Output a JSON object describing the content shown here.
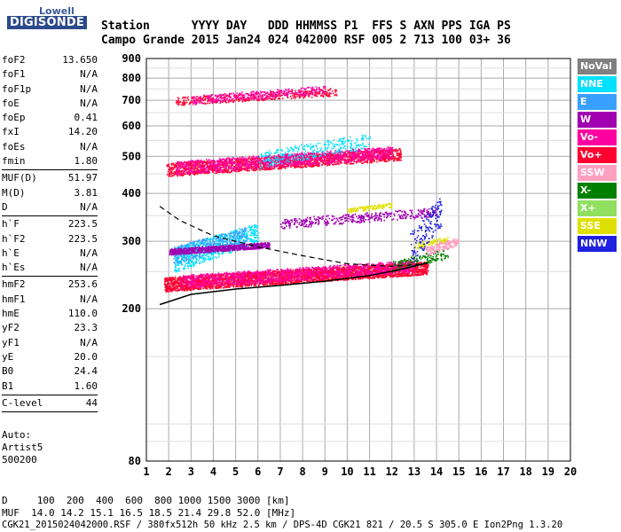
{
  "logo": {
    "top": "Lowell",
    "bottom": "DIGISONDE"
  },
  "header": {
    "line1": "Station      YYYY DAY   DDD HHMMSS P1  FFS S AXN PPS IGA PS",
    "line2": "Campo Grande 2015 Jan24 024 042000 RSF 005 2 713 100 03+ 36"
  },
  "params": [
    {
      "k": "foF2",
      "v": "13.650"
    },
    {
      "k": "foF1",
      "v": "N/A"
    },
    {
      "k": "foF1p",
      "v": "N/A"
    },
    {
      "k": "foE",
      "v": "N/A"
    },
    {
      "k": "foEp",
      "v": "0.41"
    },
    {
      "k": "fxI",
      "v": "14.20"
    },
    {
      "k": "foEs",
      "v": "N/A"
    },
    {
      "k": "fmin",
      "v": "1.80"
    },
    {
      "sep": true
    },
    {
      "k": "MUF(D)",
      "v": "51.97"
    },
    {
      "k": "M(D)",
      "v": "3.81"
    },
    {
      "k": "D",
      "v": "N/A"
    },
    {
      "sep": true
    },
    {
      "k": "h`F",
      "v": "223.5"
    },
    {
      "k": "h`F2",
      "v": "223.5"
    },
    {
      "k": "h`E",
      "v": "N/A"
    },
    {
      "k": "h`Es",
      "v": "N/A"
    },
    {
      "sep": true
    },
    {
      "k": "hmF2",
      "v": "253.6"
    },
    {
      "k": "hmF1",
      "v": "N/A"
    },
    {
      "k": "hmE",
      "v": "110.0"
    },
    {
      "k": "yF2",
      "v": "23.3"
    },
    {
      "k": "yF1",
      "v": "N/A"
    },
    {
      "k": "yE",
      "v": "20.0"
    },
    {
      "k": "B0",
      "v": "24.4"
    },
    {
      "k": "B1",
      "v": "1.60"
    },
    {
      "sep": true
    },
    {
      "k": "C-level",
      "v": "44"
    },
    {
      "sep": true
    }
  ],
  "auto_text": [
    "Auto:",
    "Artist5",
    "500200"
  ],
  "footer": {
    "line1": "D     100  200  400  600  800 1000 1500 3000 [km]",
    "line2": "MUF  14.0 14.2 15.1 16.5 18.5 21.4 29.8 52.0 [MHz]",
    "line3": "CGK21_2015024042000.RSF / 380fx512h 50 kHz 2.5 km / DPS-4D CGK21 821 / 20.5 S 305.0 E Ion2Png 1.3.20"
  },
  "legend": [
    {
      "label": "NoVal",
      "bg": "#808080",
      "fg": "#ffffff"
    },
    {
      "label": "NNE",
      "bg": "#00e0ff",
      "fg": "#ffffff"
    },
    {
      "label": "E",
      "bg": "#3aa0ff",
      "fg": "#ffffff"
    },
    {
      "label": "W",
      "bg": "#a000b0",
      "fg": "#ffffff"
    },
    {
      "label": "Vo-",
      "bg": "#ff00a0",
      "fg": "#ffffff"
    },
    {
      "label": "Vo+",
      "bg": "#ff0030",
      "fg": "#ffffff"
    },
    {
      "label": "SSW",
      "bg": "#ffa0c0",
      "fg": "#ffffff"
    },
    {
      "label": "X-",
      "bg": "#008000",
      "fg": "#ffffff"
    },
    {
      "label": "X+",
      "bg": "#90e060",
      "fg": "#ffffff"
    },
    {
      "label": "SSE",
      "bg": "#e0e000",
      "fg": "#ffffff"
    },
    {
      "label": "NNW",
      "bg": "#2020e0",
      "fg": "#ffffff"
    }
  ],
  "chart_data": {
    "type": "scatter",
    "title": "",
    "xlabel": "",
    "ylabel": "",
    "xlim": [
      1,
      20
    ],
    "ylim": [
      80,
      900
    ],
    "x_ticks": [
      1,
      2,
      3,
      4,
      5,
      6,
      7,
      8,
      9,
      10,
      11,
      12,
      13,
      14,
      15,
      16,
      17,
      18,
      19,
      20
    ],
    "y_ticks": [
      80,
      200,
      300,
      400,
      500,
      600,
      700,
      800,
      900
    ],
    "grid": true,
    "y_scale": "log",
    "series": [
      {
        "name": "Vo+",
        "color": "#ff0030",
        "bands": [
          {
            "f": [
              1.8,
              13.6
            ],
            "h": [
              228,
              268
            ],
            "density": 5
          },
          {
            "f": [
              1.9,
              12.4
            ],
            "h": [
              455,
              530
            ],
            "density": 3
          },
          {
            "f": [
              2.3,
              9.5
            ],
            "h": [
              690,
              760
            ],
            "density": 1
          }
        ]
      },
      {
        "name": "Vo-",
        "color": "#ff00a0",
        "bands": [
          {
            "f": [
              2.5,
              13
            ],
            "h": [
              232,
              270
            ],
            "density": 2
          },
          {
            "f": [
              2.3,
              12
            ],
            "h": [
              460,
              535
            ],
            "density": 2
          },
          {
            "f": [
              3,
              9
            ],
            "h": [
              695,
              770
            ],
            "density": 1
          }
        ]
      },
      {
        "name": "NNE",
        "color": "#00e0ff",
        "bands": [
          {
            "f": [
              2.2,
              6
            ],
            "h": [
              260,
              340
            ],
            "density": 3
          },
          {
            "f": [
              6,
              11
            ],
            "h": [
              480,
              580
            ],
            "density": 1
          }
        ]
      },
      {
        "name": "E",
        "color": "#3aa0ff",
        "bands": [
          {
            "f": [
              2.2,
              5.5
            ],
            "h": [
              270,
              330
            ],
            "density": 2
          }
        ]
      },
      {
        "name": "W",
        "color": "#a000b0",
        "bands": [
          {
            "f": [
              2,
              6.5
            ],
            "h": [
              280,
              300
            ],
            "density": 3
          },
          {
            "f": [
              7,
              14
            ],
            "h": [
              330,
              370
            ],
            "density": 1
          }
        ]
      },
      {
        "name": "SSE",
        "color": "#e0e000",
        "bands": [
          {
            "f": [
              10,
              12
            ],
            "h": [
              360,
              380
            ],
            "density": 1
          },
          {
            "f": [
              13,
              14.5
            ],
            "h": [
              290,
              310
            ],
            "density": 1
          }
        ]
      },
      {
        "name": "NNW",
        "color": "#2020e0",
        "bands": [
          {
            "f": [
              12.8,
              14.2
            ],
            "h": [
              270,
              400
            ],
            "density": 2
          }
        ]
      },
      {
        "name": "X-",
        "color": "#008000",
        "bands": [
          {
            "f": [
              12,
              14.5
            ],
            "h": [
              255,
              290
            ],
            "density": 1
          }
        ]
      },
      {
        "name": "SSW",
        "color": "#ffa0c0",
        "bands": [
          {
            "f": [
              13.5,
              15
            ],
            "h": [
              280,
              310
            ],
            "density": 2
          }
        ]
      }
    ],
    "fitted_trace": {
      "f": [
        1.6,
        3,
        5,
        7,
        9,
        11,
        12.5,
        13.4,
        13.6
      ],
      "h": [
        205,
        218,
        225,
        230,
        236,
        244,
        254,
        262,
        263
      ]
    },
    "profile_dashed": {
      "f": [
        1.6,
        2.5,
        4,
        6,
        8,
        10,
        12,
        13.5
      ],
      "h": [
        370,
        340,
        310,
        290,
        275,
        262,
        258,
        262
      ]
    }
  }
}
